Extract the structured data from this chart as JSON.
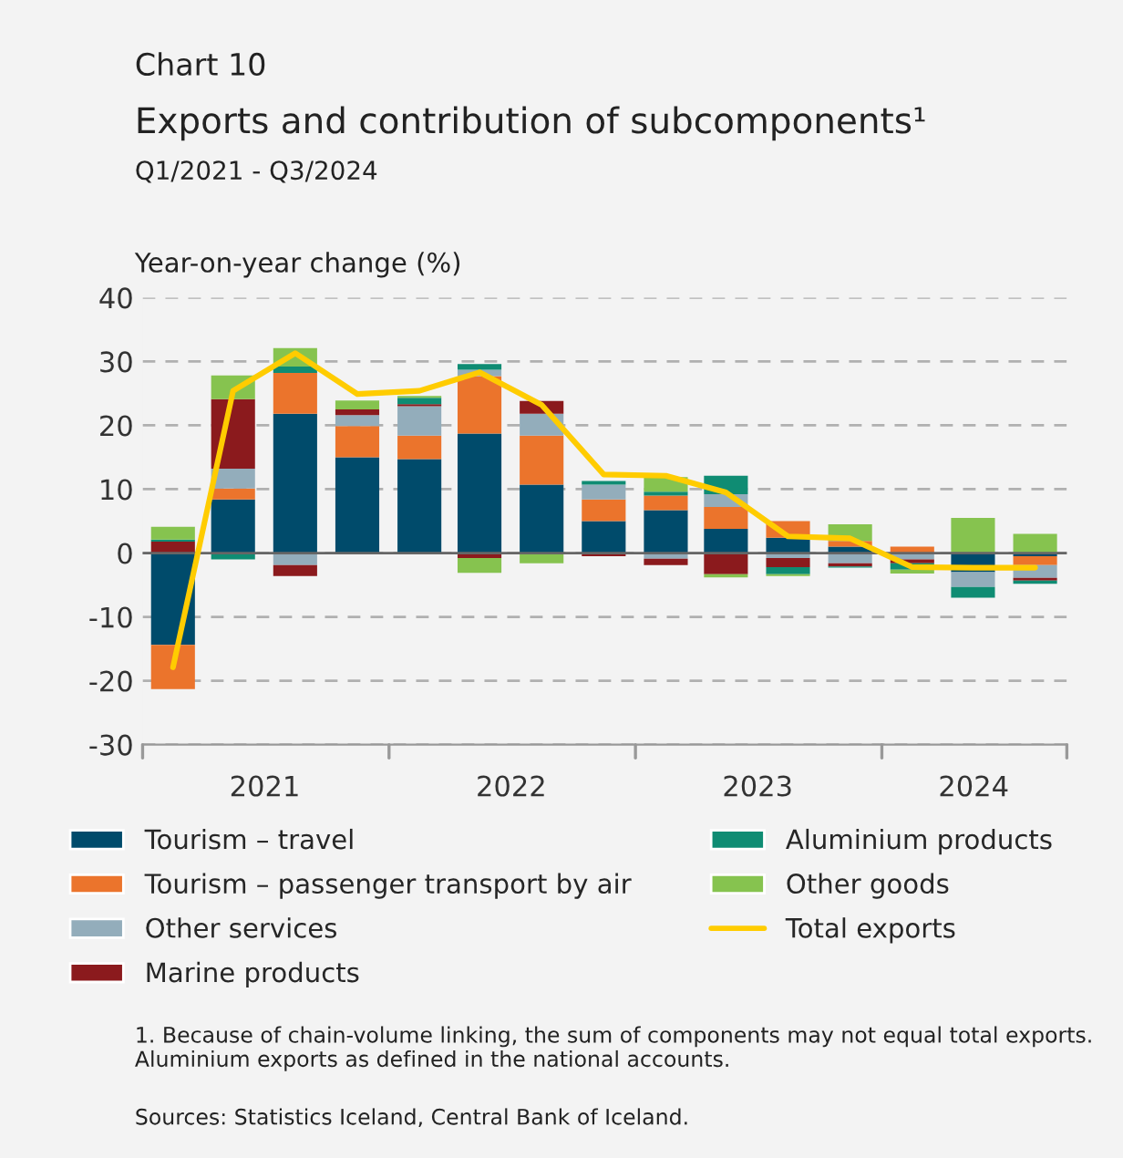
{
  "chart_data": {
    "type": "bar",
    "stacked": true,
    "title": "Exports and contribution of subcomponents¹",
    "subtitle": "Q1/2021 - Q3/2024",
    "ylabel": "Year-on-year change (%)",
    "annotations": [
      "Chart 10",
      "1. Because of chain-volume linking, the sum of components may not equal total exports. Aluminium exports as defined in the national accounts.",
      "Sources: Statistics Iceland, Central Bank of Iceland."
    ],
    "x": [
      "2021-02-15",
      "2021-05-15",
      "2021-08-15",
      "2021-11-15",
      "2022-02-15",
      "2022-05-15",
      "2022-08-15",
      "2022-11-15",
      "2023-02-15",
      "2023-05-15",
      "2023-08-15",
      "2023-11-15",
      "2024-02-15",
      "2024-05-15",
      "2024-08-15"
    ],
    "xlim": [
      "2021-01-01",
      "2024-10-01"
    ],
    "xticks": [
      {
        "value": "2021-01-01",
        "label": null
      },
      {
        "value": "2021-07-01",
        "label": "2021"
      },
      {
        "value": "2022-01-01",
        "label": null
      },
      {
        "value": "2022-07-01",
        "label": "2022"
      },
      {
        "value": "2023-01-01",
        "label": null
      },
      {
        "value": "2023-07-01",
        "label": "2023"
      },
      {
        "value": "2024-01-01",
        "label": null
      },
      {
        "value": "2024-05-16",
        "label": "2024"
      },
      {
        "value": "2024-10-01",
        "label": null
      }
    ],
    "series": [
      {
        "name": "Tourism – travel",
        "color": "#004b6b",
        "values": [
          -14.4,
          8.4,
          21.8,
          15.0,
          14.7,
          18.7,
          10.7,
          5.0,
          6.7,
          3.8,
          2.4,
          1.0,
          null,
          -3.0,
          -0.5
        ]
      },
      {
        "name": "Tourism – passenger transport by air",
        "color": "#eb742c",
        "values": [
          -6.9,
          1.7,
          6.4,
          4.9,
          3.7,
          9.0,
          7.7,
          3.4,
          2.3,
          3.4,
          2.6,
          0.9,
          1.0,
          null,
          -1.4
        ]
      },
      {
        "name": "Other services",
        "color": "#93adbb",
        "values": [
          null,
          3.1,
          -1.9,
          1.7,
          4.6,
          1.0,
          3.4,
          2.3,
          -0.9,
          2.0,
          -0.8,
          -1.6,
          -1.0,
          -2.3,
          -2.0
        ]
      },
      {
        "name": "Marine products",
        "color": "#8b1a1d",
        "values": [
          1.8,
          10.9,
          -1.7,
          0.9,
          0.3,
          -0.8,
          2.0,
          -0.5,
          -1.0,
          -3.3,
          -1.4,
          -0.5,
          -0.6,
          null,
          -0.4
        ]
      },
      {
        "name": "Aluminium products",
        "color": "#0f8c73",
        "values": [
          0.3,
          -1.0,
          1.0,
          -0.2,
          1.0,
          0.9,
          null,
          0.6,
          0.6,
          2.9,
          -1.1,
          -0.2,
          -1.0,
          -1.7,
          -0.5
        ]
      },
      {
        "name": "Other goods",
        "color": "#86c34f",
        "values": [
          2.0,
          3.7,
          2.9,
          1.4,
          0.3,
          -2.3,
          -1.6,
          null,
          2.3,
          -0.5,
          -0.3,
          2.6,
          -0.6,
          5.5,
          3.0
        ]
      },
      {
        "name": "Total exports",
        "type": "line",
        "color": "#ffcc00",
        "values": [
          -17.9,
          25.4,
          31.3,
          24.9,
          25.4,
          28.3,
          23.2,
          12.3,
          12.1,
          9.5,
          2.6,
          2.3,
          -2.2,
          -2.3,
          -2.3
        ]
      }
    ],
    "ylim": [
      -30,
      40
    ],
    "yticks": [
      -30,
      -20,
      -10,
      0,
      10,
      20,
      30,
      40
    ],
    "grid": "y",
    "legend": "bottom",
    "line_style": "solid"
  }
}
